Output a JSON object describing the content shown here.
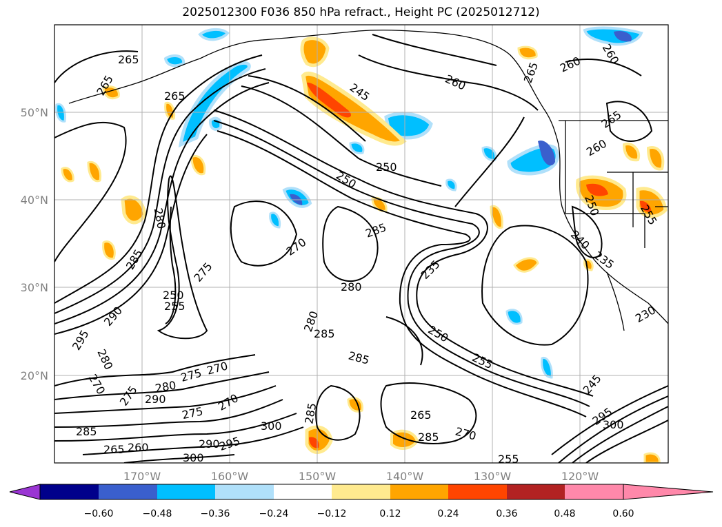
{
  "title": "2025012300 F036 850 hPa refract., Height PC (2025012712)",
  "lat_labels": [
    "50°N",
    "40°N",
    "30°N",
    "20°N"
  ],
  "lon_labels": [
    "170°W",
    "160°W",
    "150°W",
    "140°W",
    "130°W",
    "120°W"
  ],
  "colorbar": {
    "colors": [
      "#9a35d3",
      "#00008b",
      "#3a5fcd",
      "#00bfff",
      "#b0e0fa",
      "#ffffff",
      "#ffea8f",
      "#ffa500",
      "#ff4500",
      "#b22222",
      "#ff88aa"
    ],
    "ticks": [
      "−0.60",
      "−0.48",
      "−0.36",
      "−0.24",
      "−0.12",
      "0.12",
      "0.24",
      "0.36",
      "0.48",
      "0.60"
    ]
  },
  "contour_labels": [
    "265",
    "265",
    "265",
    "245",
    "250",
    "260",
    "260",
    "265",
    "260",
    "265",
    "260",
    "250",
    "280",
    "285",
    "270",
    "280",
    "285",
    "285",
    "280",
    "275",
    "250",
    "255",
    "285",
    "290",
    "295",
    "280",
    "270",
    "275",
    "280",
    "270",
    "275",
    "290",
    "275",
    "270",
    "285",
    "300",
    "265",
    "285",
    "270",
    "285",
    "300",
    "295",
    "290",
    "265",
    "260",
    "235",
    "250",
    "255",
    "245",
    "240",
    "235",
    "230",
    "250",
    "255",
    "295",
    "300",
    "255"
  ]
}
